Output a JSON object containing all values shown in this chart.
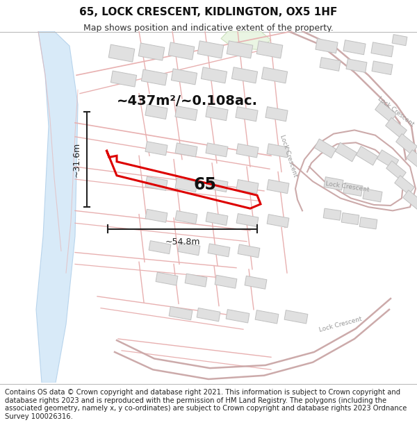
{
  "title": "65, LOCK CRESCENT, KIDLINGTON, OX5 1HF",
  "subtitle": "Map shows position and indicative extent of the property.",
  "footer": "Contains OS data © Crown copyright and database right 2021. This information is subject to Crown copyright and database rights 2023 and is reproduced with the permission of HM Land Registry. The polygons (including the associated geometry, namely x, y co-ordinates) are subject to Crown copyright and database rights 2023 Ordnance Survey 100026316.",
  "area_label": "~437m²/~0.108ac.",
  "width_label": "~54.8m",
  "height_label": "~31.6m",
  "number_label": "65",
  "map_bg": "#ffffff",
  "road_color": "#e8b0b0",
  "road_lw": 1.0,
  "property_color": "#dd0000",
  "water_fill": "#d8eaf8",
  "water_edge": "#b8d4ec",
  "building_fill": "#e0e0e0",
  "building_edge": "#c8c8c8",
  "green_fill": "#e8f4e0",
  "road_label_color": "#999999",
  "ann_color": "#222222",
  "title_fontsize": 11,
  "subtitle_fontsize": 9,
  "footer_fontsize": 7.2,
  "area_fontsize": 14,
  "dim_fontsize": 9,
  "num_fontsize": 17
}
